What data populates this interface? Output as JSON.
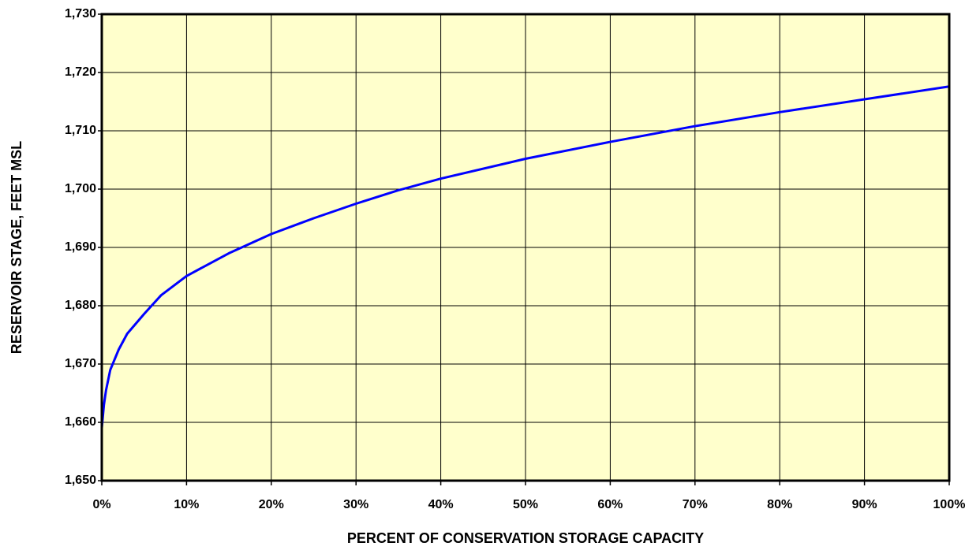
{
  "chart_data": {
    "type": "line",
    "x_label": "PERCENT OF CONSERVATION STORAGE CAPACITY",
    "y_label": "RESERVOIR STAGE, FEET MSL",
    "x": [
      0,
      0.25,
      0.5,
      1,
      2,
      3,
      5,
      7,
      10,
      15,
      20,
      25,
      30,
      35,
      40,
      50,
      60,
      70,
      80,
      90,
      100
    ],
    "values": [
      1659,
      1663,
      1665.5,
      1669,
      1672.5,
      1675.2,
      1678.6,
      1681.8,
      1685.1,
      1689,
      1692.3,
      1695,
      1697.5,
      1699.8,
      1701.8,
      1705.2,
      1708.1,
      1710.8,
      1713.2,
      1715.4,
      1717.6
    ],
    "color": "#0000ff",
    "background": "#ffffcc",
    "grid": true,
    "xlim": [
      0,
      100
    ],
    "xticks": [
      {
        "value": 0,
        "label": "0%"
      },
      {
        "value": 10,
        "label": "10%"
      },
      {
        "value": 20,
        "label": "20%"
      },
      {
        "value": 30,
        "label": "30%"
      },
      {
        "value": 40,
        "label": "40%"
      },
      {
        "value": 50,
        "label": "50%"
      },
      {
        "value": 60,
        "label": "60%"
      },
      {
        "value": 70,
        "label": "70%"
      },
      {
        "value": 80,
        "label": "80%"
      },
      {
        "value": 90,
        "label": "90%"
      },
      {
        "value": 100,
        "label": "100%"
      }
    ],
    "ylim": [
      1650,
      1730
    ],
    "yticks": [
      {
        "value": 1650,
        "label": "1,650"
      },
      {
        "value": 1660,
        "label": "1,660"
      },
      {
        "value": 1670,
        "label": "1,670"
      },
      {
        "value": 1680,
        "label": "1,680"
      },
      {
        "value": 1690,
        "label": "1,690"
      },
      {
        "value": 1700,
        "label": "1,700"
      },
      {
        "value": 1710,
        "label": "1,710"
      },
      {
        "value": 1720,
        "label": "1,720"
      },
      {
        "value": 1730,
        "label": "1,730"
      }
    ]
  }
}
